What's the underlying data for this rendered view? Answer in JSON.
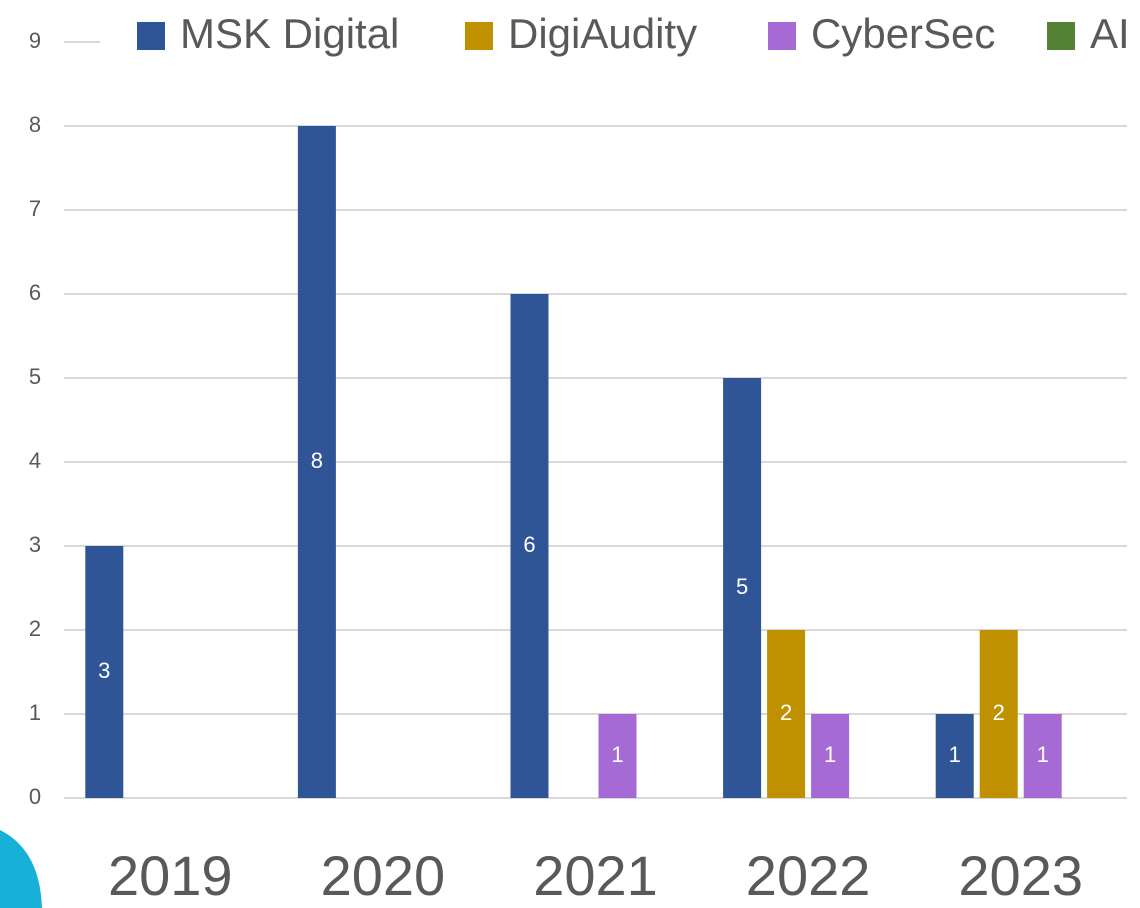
{
  "chart_data": {
    "type": "bar",
    "categories": [
      "2019",
      "2020",
      "2021",
      "2022",
      "2023"
    ],
    "series": [
      {
        "name": "MSK Digital",
        "color": "#2f5597",
        "values": [
          3,
          8,
          6,
          5,
          1
        ]
      },
      {
        "name": "DigiAudity",
        "color": "#bf9000",
        "values": [
          null,
          null,
          null,
          2,
          2
        ]
      },
      {
        "name": "CyberSec",
        "color": "#a66ad4",
        "values": [
          null,
          null,
          1,
          1,
          1
        ]
      },
      {
        "name": "AI",
        "color": "#548235",
        "values": [
          null,
          null,
          null,
          null,
          null
        ]
      }
    ],
    "ylim": [
      0,
      9
    ],
    "yticks": [
      0,
      1,
      2,
      3,
      4,
      5,
      6,
      7,
      8,
      9
    ],
    "grid": true,
    "legend": "top"
  }
}
